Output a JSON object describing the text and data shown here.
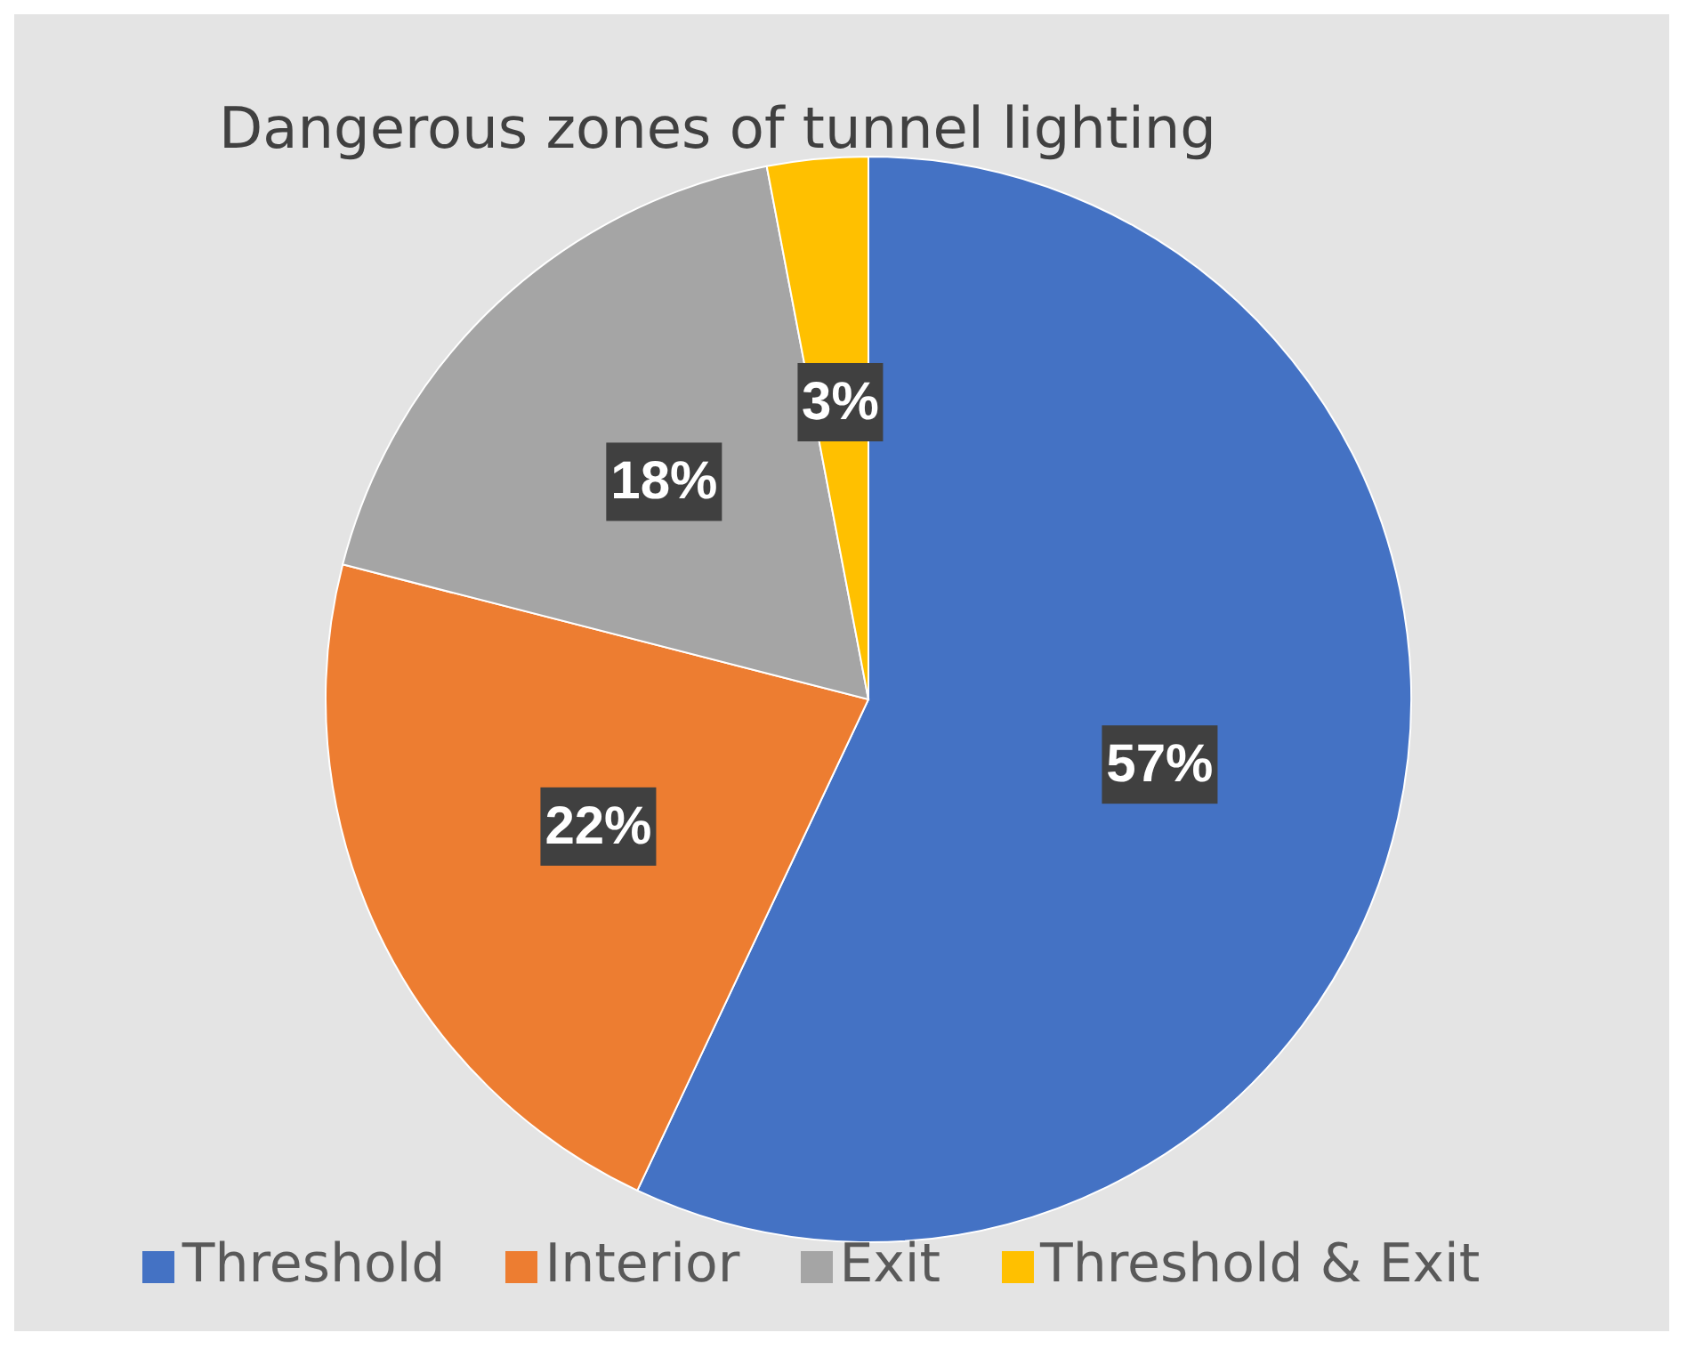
{
  "chart_data": {
    "type": "pie",
    "title": "Dangerous zones of tunnel lighting",
    "categories": [
      "Threshold",
      "Interior",
      "Exit",
      "Threshold & Exit"
    ],
    "values": [
      57,
      22,
      18,
      3
    ],
    "colors": [
      "#4472c4",
      "#ed7d31",
      "#a5a5a5",
      "#ffc000"
    ],
    "value_labels": [
      "57%",
      "22%",
      "18%",
      "3%"
    ],
    "legend": "bottom"
  }
}
